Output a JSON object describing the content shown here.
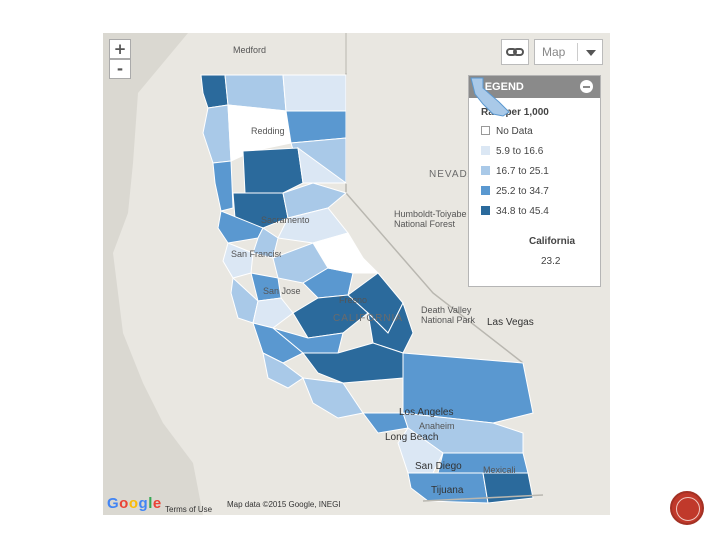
{
  "map": {
    "zoom_in_label": "+",
    "zoom_out_label": "-",
    "map_type_label": "Map",
    "place_labels": {
      "medford": "Medford",
      "redding": "Redding",
      "nevada": "NEVADA",
      "humboldt": "Humboldt-Toiyabe National Forest",
      "sacramento": "Sacramento",
      "san_francisco": "San Francisco",
      "san_jose": "San Jose",
      "fresno": "Fresno",
      "california": "CALIFORNIA",
      "death_valley": "Death Valley National Park",
      "las_vegas": "Las Vegas",
      "los_angeles": "Los Angeles",
      "anaheim": "Anaheim",
      "long_beach": "Long Beach",
      "san_diego": "San Diego",
      "mexicali": "Mexicali",
      "tijuana": "Tijuana"
    },
    "google_logo": "Google",
    "terms": "Terms of Use",
    "attribution": "Map data ©2015 Google, INEGI"
  },
  "legend": {
    "title": "LEGEND",
    "subtitle": "Rate per 1,000",
    "items": [
      {
        "label": "No Data",
        "color": "#ffffff"
      },
      {
        "label": "5.9 to 16.6",
        "color": "#dbe7f4"
      },
      {
        "label": "16.7 to 25.1",
        "color": "#a9c9e8"
      },
      {
        "label": "25.2 to 34.7",
        "color": "#5a98d0"
      },
      {
        "label": "34.8 to 45.4",
        "color": "#2b6a9c"
      }
    ],
    "state_name": "California",
    "state_value": "23.2"
  },
  "icons": {
    "link": "link-icon",
    "dropdown": "chevron-down-icon",
    "collapse": "minus-circle-icon",
    "next": "next-slide-icon"
  }
}
